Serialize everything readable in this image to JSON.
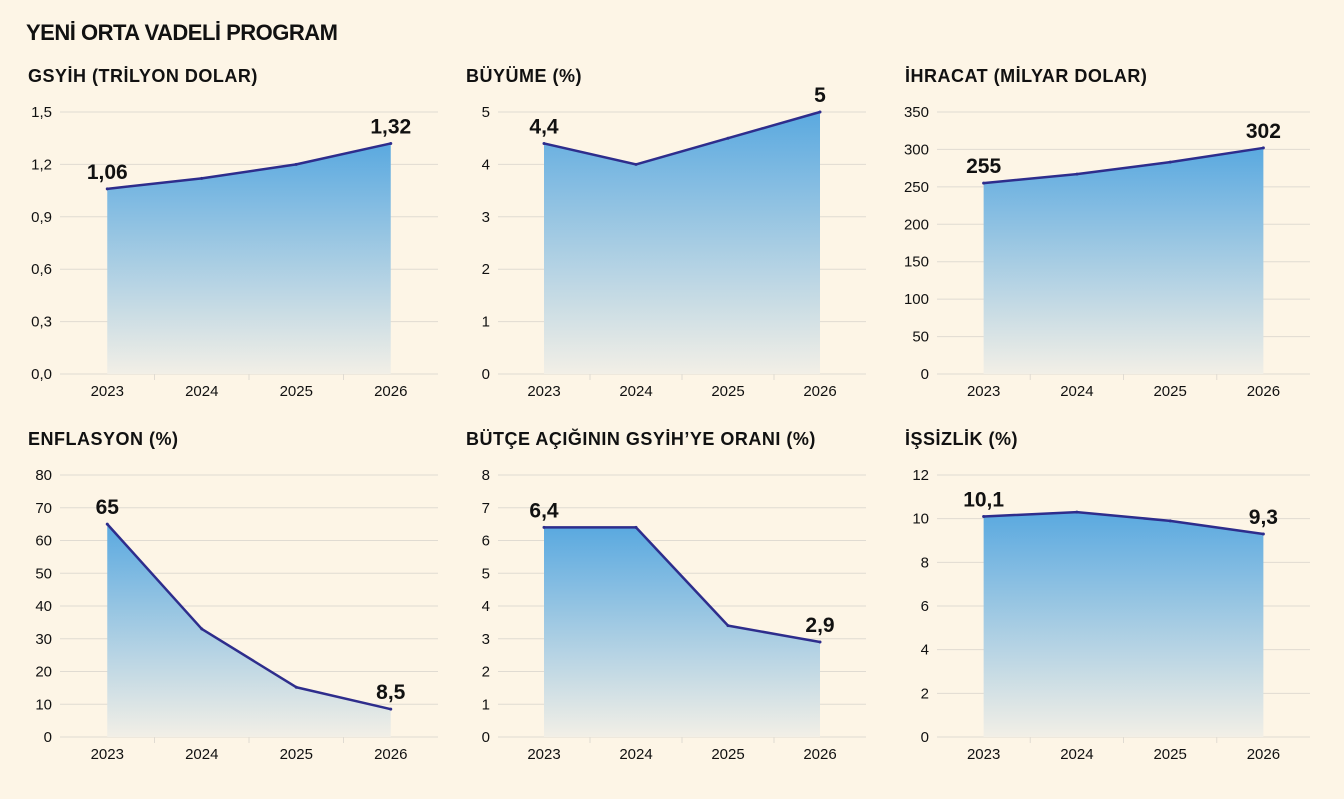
{
  "title": "YENİ ORTA VADELİ PROGRAM",
  "colors": {
    "background": "#fdf5e6",
    "line": "#2e2d8c",
    "fill_top": "#5aa9e0",
    "fill_bottom": "#f2efe6",
    "grid": "#e0dbd2"
  },
  "chart_data": [
    {
      "type": "area",
      "title": "GSYİH (TRİLYON DOLAR)",
      "categories": [
        "2023",
        "2024",
        "2025",
        "2026"
      ],
      "values": [
        1.06,
        1.12,
        1.2,
        1.32
      ],
      "ylim": [
        0,
        1.5
      ],
      "yticks": [
        0,
        0.3,
        0.6,
        0.9,
        1.2,
        1.5
      ],
      "ytick_labels": [
        "0,0",
        "0,3",
        "0,6",
        "0,9",
        "1,2",
        "1,5"
      ],
      "labels": [
        {
          "index": 0,
          "text": "1,06"
        },
        {
          "index": 3,
          "text": "1,32"
        }
      ],
      "grid": true
    },
    {
      "type": "area",
      "title": "BÜYÜME (%)",
      "categories": [
        "2023",
        "2024",
        "2025",
        "2026"
      ],
      "values": [
        4.4,
        4.0,
        4.5,
        5.0
      ],
      "ylim": [
        0,
        5
      ],
      "yticks": [
        0,
        1,
        2,
        3,
        4,
        5
      ],
      "ytick_labels": [
        "0",
        "1",
        "2",
        "3",
        "4",
        "5"
      ],
      "labels": [
        {
          "index": 0,
          "text": "4,4"
        },
        {
          "index": 3,
          "text": "5"
        }
      ],
      "grid": true
    },
    {
      "type": "area",
      "title": "İHRACAT (MİLYAR DOLAR)",
      "categories": [
        "2023",
        "2024",
        "2025",
        "2026"
      ],
      "values": [
        255,
        267,
        283,
        302
      ],
      "ylim": [
        0,
        350
      ],
      "yticks": [
        0,
        50,
        100,
        150,
        200,
        250,
        300,
        350
      ],
      "ytick_labels": [
        "0",
        "50",
        "100",
        "150",
        "200",
        "250",
        "300",
        "350"
      ],
      "labels": [
        {
          "index": 0,
          "text": "255"
        },
        {
          "index": 3,
          "text": "302"
        }
      ],
      "grid": true
    },
    {
      "type": "area",
      "title": "ENFLASYON (%)",
      "categories": [
        "2023",
        "2024",
        "2025",
        "2026"
      ],
      "values": [
        65,
        33,
        15.2,
        8.5
      ],
      "ylim": [
        0,
        80
      ],
      "yticks": [
        0,
        10,
        20,
        30,
        40,
        50,
        60,
        70,
        80
      ],
      "ytick_labels": [
        "0",
        "10",
        "20",
        "30",
        "40",
        "50",
        "60",
        "70",
        "80"
      ],
      "labels": [
        {
          "index": 0,
          "text": "65"
        },
        {
          "index": 3,
          "text": "8,5"
        }
      ],
      "grid": true
    },
    {
      "type": "area",
      "title": "BÜTÇE AÇIĞININ GSYİH’YE ORANI (%)",
      "categories": [
        "2023",
        "2024",
        "2025",
        "2026"
      ],
      "values": [
        6.4,
        6.4,
        3.4,
        2.9
      ],
      "ylim": [
        0,
        8
      ],
      "yticks": [
        0,
        1,
        2,
        3,
        4,
        5,
        6,
        7,
        8
      ],
      "ytick_labels": [
        "0",
        "1",
        "2",
        "3",
        "4",
        "5",
        "6",
        "7",
        "8"
      ],
      "labels": [
        {
          "index": 0,
          "text": "6,4"
        },
        {
          "index": 3,
          "text": "2,9"
        }
      ],
      "grid": true
    },
    {
      "type": "area",
      "title": "İŞSİZLİK (%)",
      "categories": [
        "2023",
        "2024",
        "2025",
        "2026"
      ],
      "values": [
        10.1,
        10.3,
        9.9,
        9.3
      ],
      "ylim": [
        0,
        12
      ],
      "yticks": [
        0,
        2,
        4,
        6,
        8,
        10,
        12
      ],
      "ytick_labels": [
        "0",
        "2",
        "4",
        "6",
        "8",
        "10",
        "12"
      ],
      "labels": [
        {
          "index": 0,
          "text": "10,1"
        },
        {
          "index": 3,
          "text": "9,3"
        }
      ],
      "grid": true
    }
  ]
}
